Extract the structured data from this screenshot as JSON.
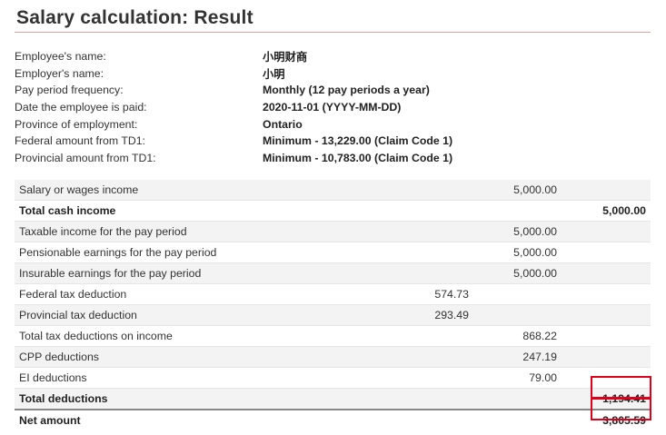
{
  "page": {
    "title": "Salary calculation: Result"
  },
  "info": [
    {
      "label": "Employee's name:",
      "value": "小明财商"
    },
    {
      "label": "Employer's name:",
      "value": "小明"
    },
    {
      "label": "Pay period frequency:",
      "value": "Monthly (12 pay periods a year)"
    },
    {
      "label": "Date the employee is paid:",
      "value": "2020-11-01 (YYYY-MM-DD)"
    },
    {
      "label": "Province of employment:",
      "value": "Ontario"
    },
    {
      "label": "Federal amount from TD1:",
      "value": "Minimum - 13,229.00 (Claim Code 1)"
    },
    {
      "label": "Provincial amount from TD1:",
      "value": "Minimum - 10,783.00 (Claim Code 1)"
    }
  ],
  "results": [
    {
      "label": "Salary or wages income",
      "c1": "",
      "c2": "5,000.00",
      "c3": ""
    },
    {
      "label": "Total cash income",
      "c1": "",
      "c2": "",
      "c3": "5,000.00"
    },
    {
      "label": "Taxable income for the pay period",
      "c1": "",
      "c2": "5,000.00",
      "c3": ""
    },
    {
      "label": "Pensionable earnings for the pay period",
      "c1": "",
      "c2": "5,000.00",
      "c3": ""
    },
    {
      "label": "Insurable earnings for the pay period",
      "c1": "",
      "c2": "5,000.00",
      "c3": ""
    },
    {
      "label": "Federal tax deduction",
      "c1": "574.73",
      "c2": "",
      "c3": ""
    },
    {
      "label": "Provincial tax deduction",
      "c1": "293.49",
      "c2": "",
      "c3": ""
    },
    {
      "label": "Total tax deductions on income",
      "c1": "",
      "c2": "868.22",
      "c3": ""
    },
    {
      "label": "CPP deductions",
      "c1": "",
      "c2": "247.19",
      "c3": ""
    },
    {
      "label": "EI deductions",
      "c1": "",
      "c2": "79.00",
      "c3": ""
    },
    {
      "label": "Total deductions",
      "c1": "",
      "c2": "",
      "c3": "1,194.41"
    },
    {
      "label": "Net amount",
      "c1": "",
      "c2": "",
      "c3": "3,805.59"
    }
  ],
  "colors": {
    "highlight": "#e0001b",
    "row_shade": "#f3f3f3",
    "title_rule": "#e2a0a0"
  }
}
